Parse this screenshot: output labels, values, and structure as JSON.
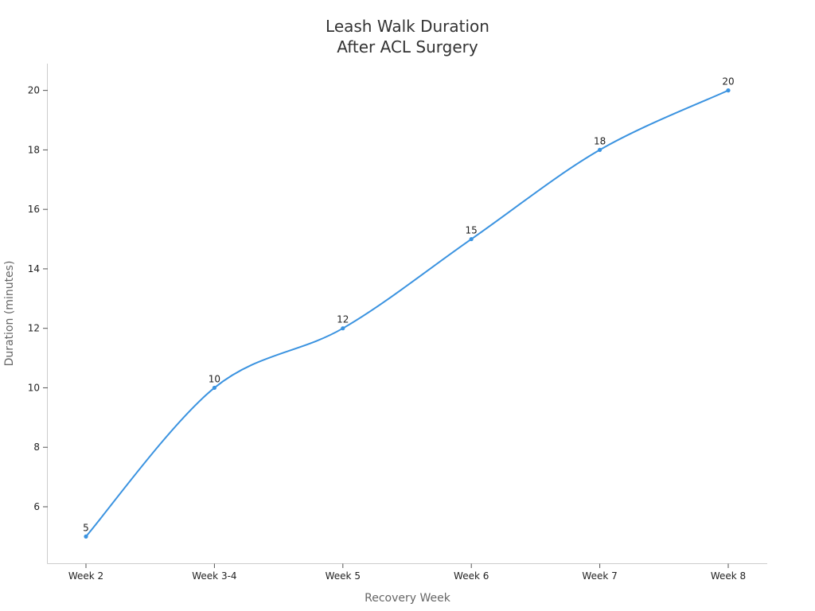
{
  "chart_data": {
    "type": "line",
    "title_lines": [
      "Leash Walk Duration",
      "After ACL Surgery"
    ],
    "xlabel": "Recovery Week",
    "ylabel": "Duration (minutes)",
    "categories": [
      "Week 2",
      "Week 3-4",
      "Week 5",
      "Week 6",
      "Week 7",
      "Week 8"
    ],
    "series": [
      {
        "values": [
          5,
          10,
          12,
          15,
          18,
          20
        ]
      }
    ],
    "yticks": [
      6,
      8,
      10,
      12,
      14,
      16,
      18,
      20
    ],
    "ylim": [
      4.1,
      20.9
    ],
    "line_color": "#3b93e0",
    "curve": "smooth",
    "grid": false,
    "legend": "none"
  }
}
